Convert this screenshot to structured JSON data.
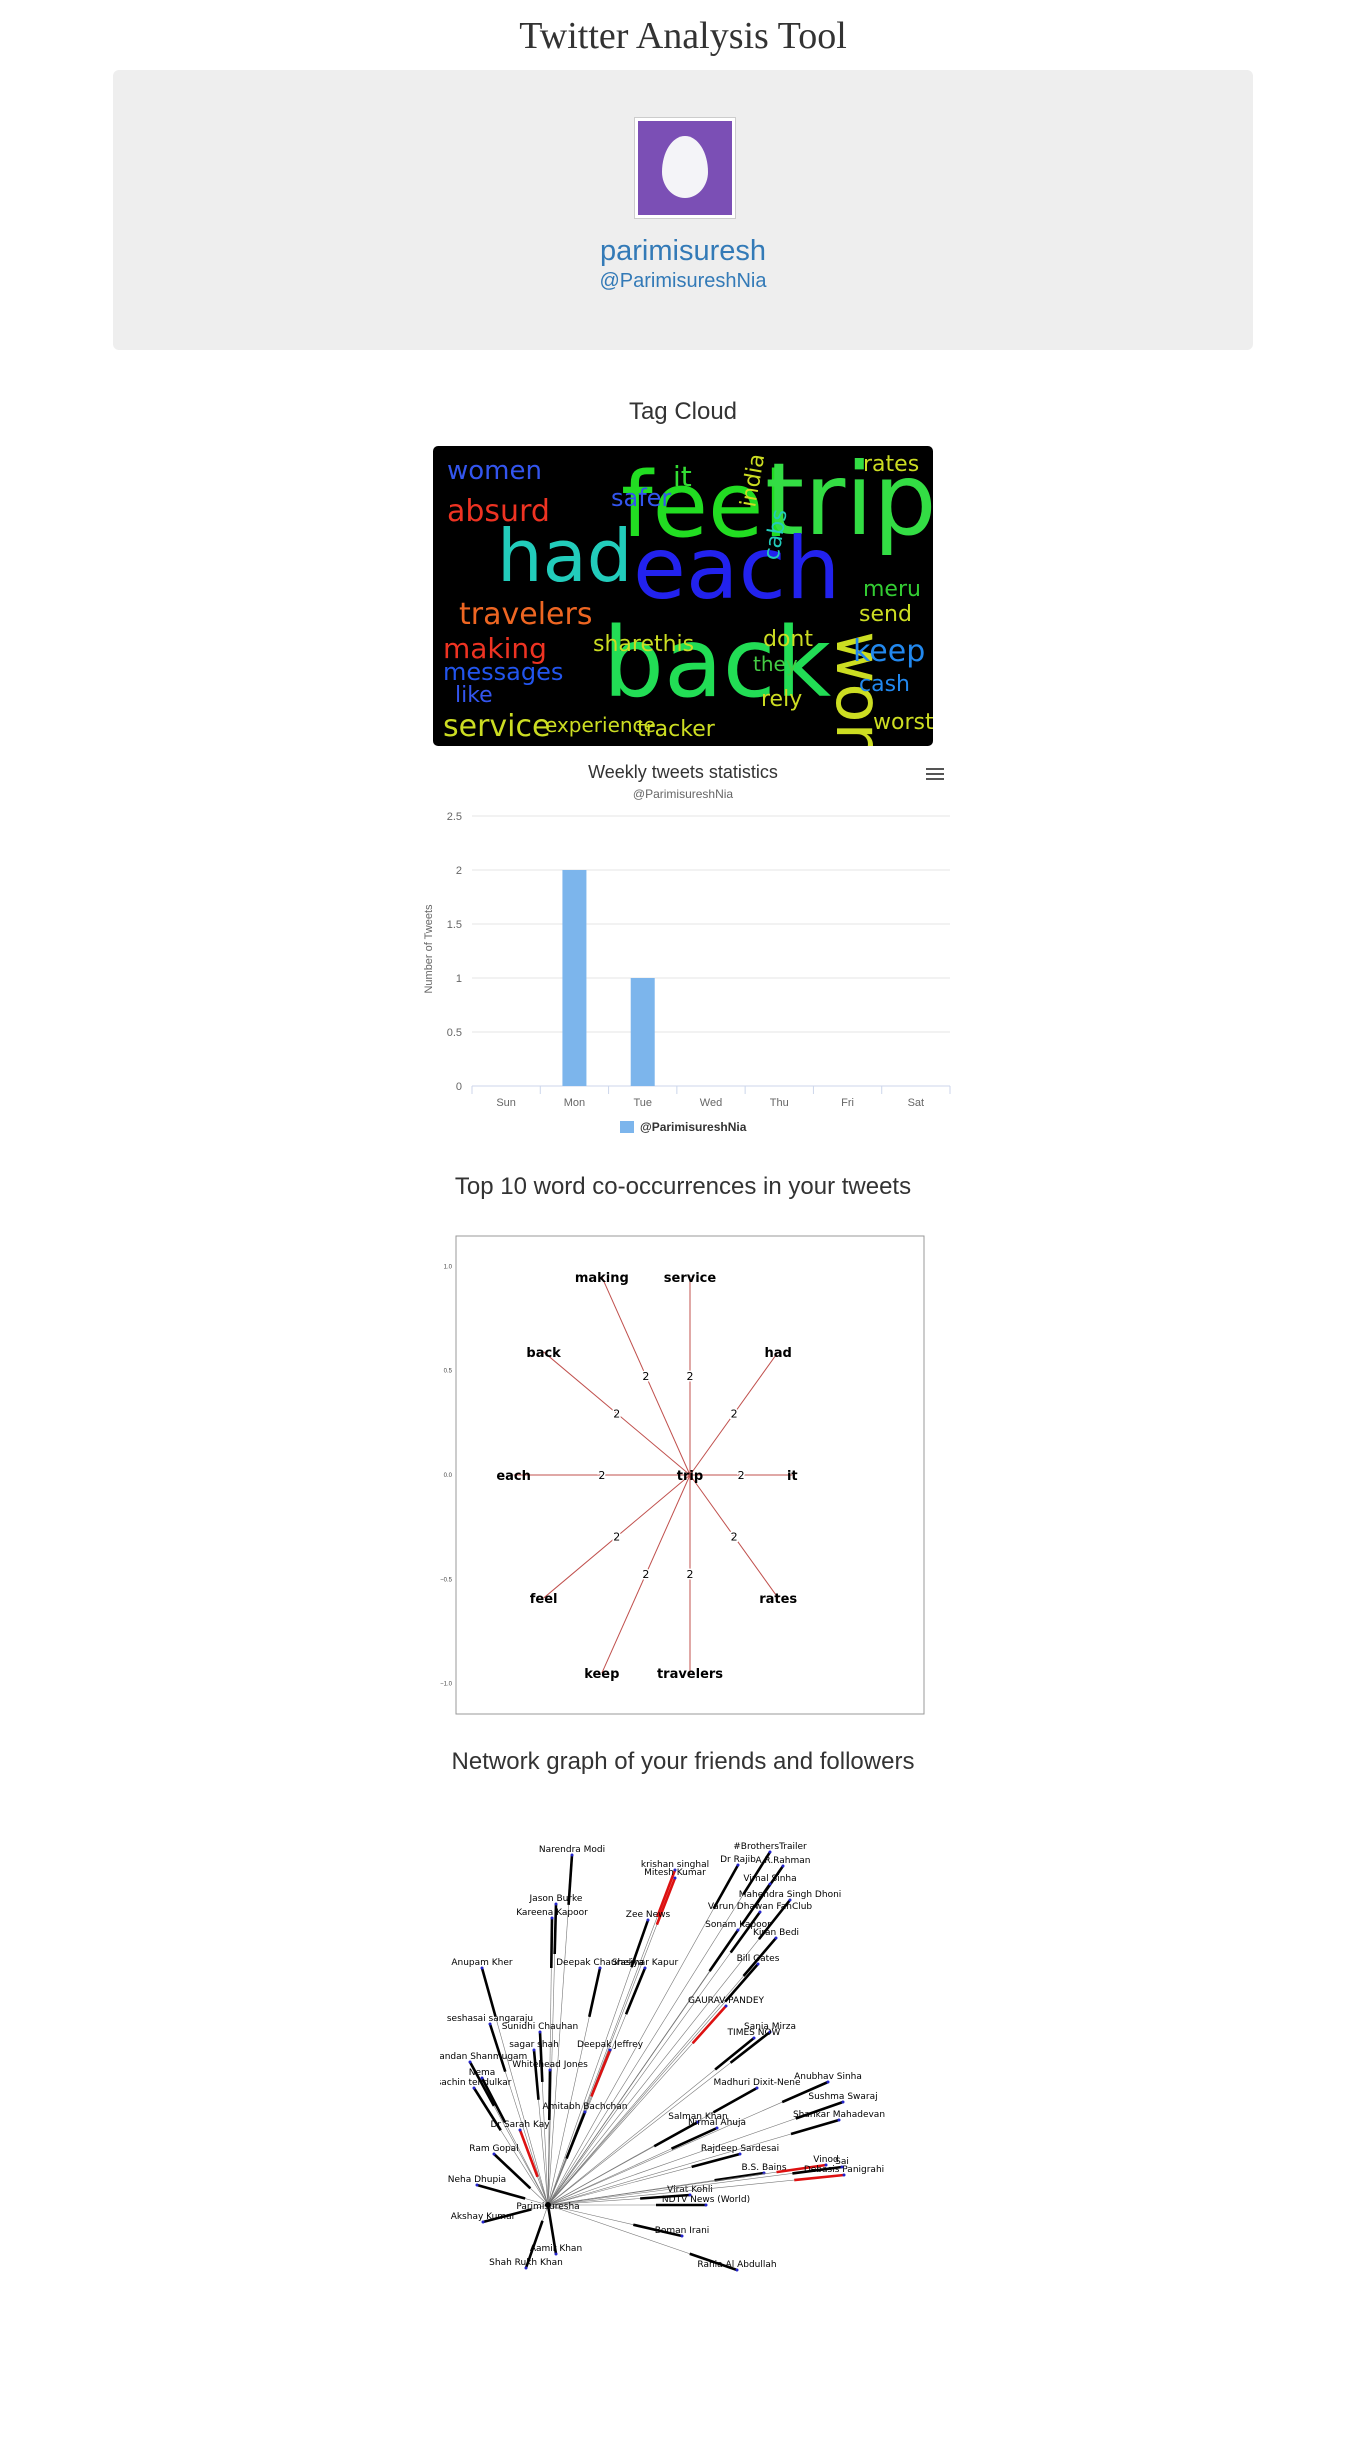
{
  "site": {
    "title": "Twitter Analysis Tool"
  },
  "profile": {
    "name": "parimisuresh",
    "handle": "@ParimisureshNia",
    "avatar_color": "#7b4fb5"
  },
  "sections": {
    "tag_cloud": "Tag Cloud",
    "cooccurrence": "Top 10 word co-occurrences in your tweets",
    "network": "Network graph of your friends and followers"
  },
  "tag_cloud": {
    "words": [
      {
        "text": "feel",
        "color": "#22dd22"
      },
      {
        "text": "trip",
        "color": "#33dd44"
      },
      {
        "text": "each",
        "color": "#2222ee"
      },
      {
        "text": "back",
        "color": "#22dd55"
      },
      {
        "text": "had",
        "color": "#22ccbb"
      },
      {
        "text": "won't",
        "color": "#ccdd22"
      },
      {
        "text": "women",
        "color": "#3355ee"
      },
      {
        "text": "absurd",
        "color": "#ee3322"
      },
      {
        "text": "safer",
        "color": "#3355ee"
      },
      {
        "text": "it",
        "color": "#33dd33"
      },
      {
        "text": "rates",
        "color": "#ccdd22"
      },
      {
        "text": "travelers",
        "color": "#ee6622"
      },
      {
        "text": "making",
        "color": "#ee3322"
      },
      {
        "text": "messages",
        "color": "#2255ee"
      },
      {
        "text": "like",
        "color": "#3355ee"
      },
      {
        "text": "sharethis",
        "color": "#ccdd22"
      },
      {
        "text": "dont",
        "color": "#ccdd22"
      },
      {
        "text": "they",
        "color": "#44cc44"
      },
      {
        "text": "meru",
        "color": "#33cc33"
      },
      {
        "text": "send",
        "color": "#ccdd22"
      },
      {
        "text": "keep",
        "color": "#2288ee"
      },
      {
        "text": "cash",
        "color": "#2288ee"
      },
      {
        "text": "service",
        "color": "#ccdd22"
      },
      {
        "text": "experience",
        "color": "#ccdd22"
      },
      {
        "text": "tracker",
        "color": "#ccdd22"
      },
      {
        "text": "rely",
        "color": "#ccdd22"
      },
      {
        "text": "worst",
        "color": "#ccdd22"
      },
      {
        "text": "cabs",
        "color": "#22ccbb"
      },
      {
        "text": "india",
        "color": "#ccdd22"
      }
    ]
  },
  "chart_data": {
    "type": "bar",
    "title": "Weekly tweets statistics",
    "subtitle": "@ParimisureshNia",
    "categories": [
      "Sun",
      "Mon",
      "Tue",
      "Wed",
      "Thu",
      "Fri",
      "Sat"
    ],
    "series": [
      {
        "name": "@ParimisureshNia",
        "values": [
          0,
          2,
          1,
          0,
          0,
          0,
          0
        ],
        "color": "#7cb5ec"
      }
    ],
    "ylabel": "Number of Tweets",
    "ylim": [
      0,
      2.5
    ],
    "yticks": [
      "0",
      "0.5",
      "1",
      "1.5",
      "2",
      "2.5"
    ],
    "grid": true,
    "legend": "bottom"
  },
  "cooccurrence": {
    "center": "trip",
    "nodes": [
      "making",
      "service",
      "back",
      "had",
      "each",
      "it",
      "feel",
      "rates",
      "keep",
      "travelers"
    ],
    "weight": "2",
    "x_ticks": [
      "−1.0",
      "−0.5",
      "0.0",
      "0.5",
      "1.0"
    ],
    "y_ticks": [
      "1.0",
      "0.5",
      "0.0",
      "−0.5",
      "−1.0"
    ]
  },
  "network": {
    "center": "Parimisuresha",
    "nodes": [
      "Narendra Modi",
      "#BrothersTrailer",
      "Dr Rajib",
      "A.R.Rahman",
      "krishan singhal",
      "Mitesh Kumar",
      "Vimal Sinha",
      "Mahendra Singh Dhoni",
      "Varun Dhawan FanClub",
      "Jason Burke",
      "Kareena Kapoor",
      "Zee News",
      "Sonam Kapoor",
      "Kiran Bedi",
      "Anupam Kher",
      "Deepak Chaurasiya",
      "Shekhar Kapur",
      "Bill Gates",
      "GAURAV PANDEY",
      "seshasai sangaraju",
      "Sunidhi Chauhan",
      "Sania Mirza",
      "sagar shah",
      "Deepak Jeffrey",
      "TIMES NOW",
      "Manikandan Shanmugam",
      "Whitehead Jones",
      "Anubhav Sinha",
      "Nema",
      "Madhuri Dixit-Nene",
      "sachin tendulkar",
      "Sushma Swaraj",
      "Amitabh Bachchan",
      "Salman Khan",
      "Nirmal Ahuja",
      "Shankar Mahadevan",
      "Dr Sarah Kay",
      "Rajdeep Sardesai",
      "Ram Gopal",
      "B.S. Bains",
      "Vinod",
      "Virat Kohli",
      "Debasis Panigrahi",
      "Neha Dhupia",
      "NDTV News (World)",
      "Akshay Kumar",
      "Boman Irani",
      "Aamir Khan",
      "Rania Al Abdullah",
      "Shah Rukh Khan",
      "Sai"
    ]
  }
}
